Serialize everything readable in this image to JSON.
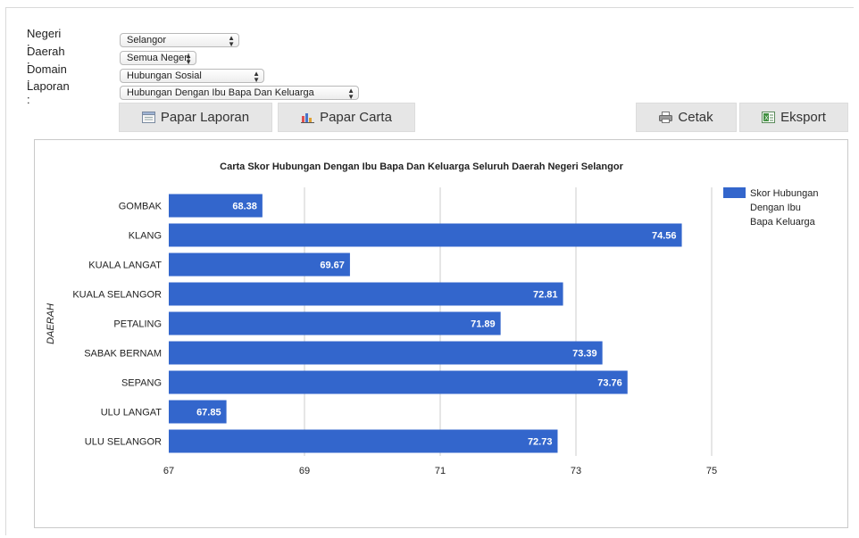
{
  "filters": [
    {
      "label": "Negeri :",
      "value": "Selangor"
    },
    {
      "label": "Daerah :",
      "value": "Semua Negeri"
    },
    {
      "label": "Domain :",
      "value": "Hubungan Sosial"
    },
    {
      "label": "Laporan :",
      "value": "Hubungan Dengan Ibu Bapa Dan Keluarga"
    }
  ],
  "toolbar": {
    "report_label": "Papar Laporan",
    "chart_label": "Papar Carta",
    "print_label": "Cetak",
    "export_label": "Eksport"
  },
  "colors": {
    "bar": "#3366cc",
    "grid": "#cccccc"
  },
  "chart_data": {
    "type": "bar",
    "orientation": "horizontal",
    "title": "Carta Skor Hubungan Dengan Ibu Bapa Dan Keluarga Seluruh Daerah Negeri Selangor",
    "ylabel": "DAERAH",
    "xlabel": "",
    "xlim": [
      67,
      75
    ],
    "xticks": [
      "67",
      "69",
      "71",
      "73",
      "75"
    ],
    "categories": [
      "GOMBAK",
      "KLANG",
      "KUALA LANGAT",
      "KUALA SELANGOR",
      "PETALING",
      "SABAK BERNAM",
      "SEPANG",
      "ULU LANGAT",
      "ULU SELANGOR"
    ],
    "series": [
      {
        "name": "Skor Hubungan Dengan Ibu Bapa Keluarga",
        "values": [
          68.38,
          74.56,
          69.67,
          72.81,
          71.89,
          73.39,
          73.76,
          67.85,
          72.73
        ],
        "labels": [
          "68.38",
          "74.56",
          "69.67",
          "72.81",
          "71.89",
          "73.39",
          "73.76",
          "67.85",
          "72.73"
        ]
      }
    ],
    "legend": {
      "position": "right",
      "lines": [
        "Skor Hubungan",
        "Dengan Ibu",
        "Bapa Keluarga"
      ]
    },
    "grid": true
  }
}
